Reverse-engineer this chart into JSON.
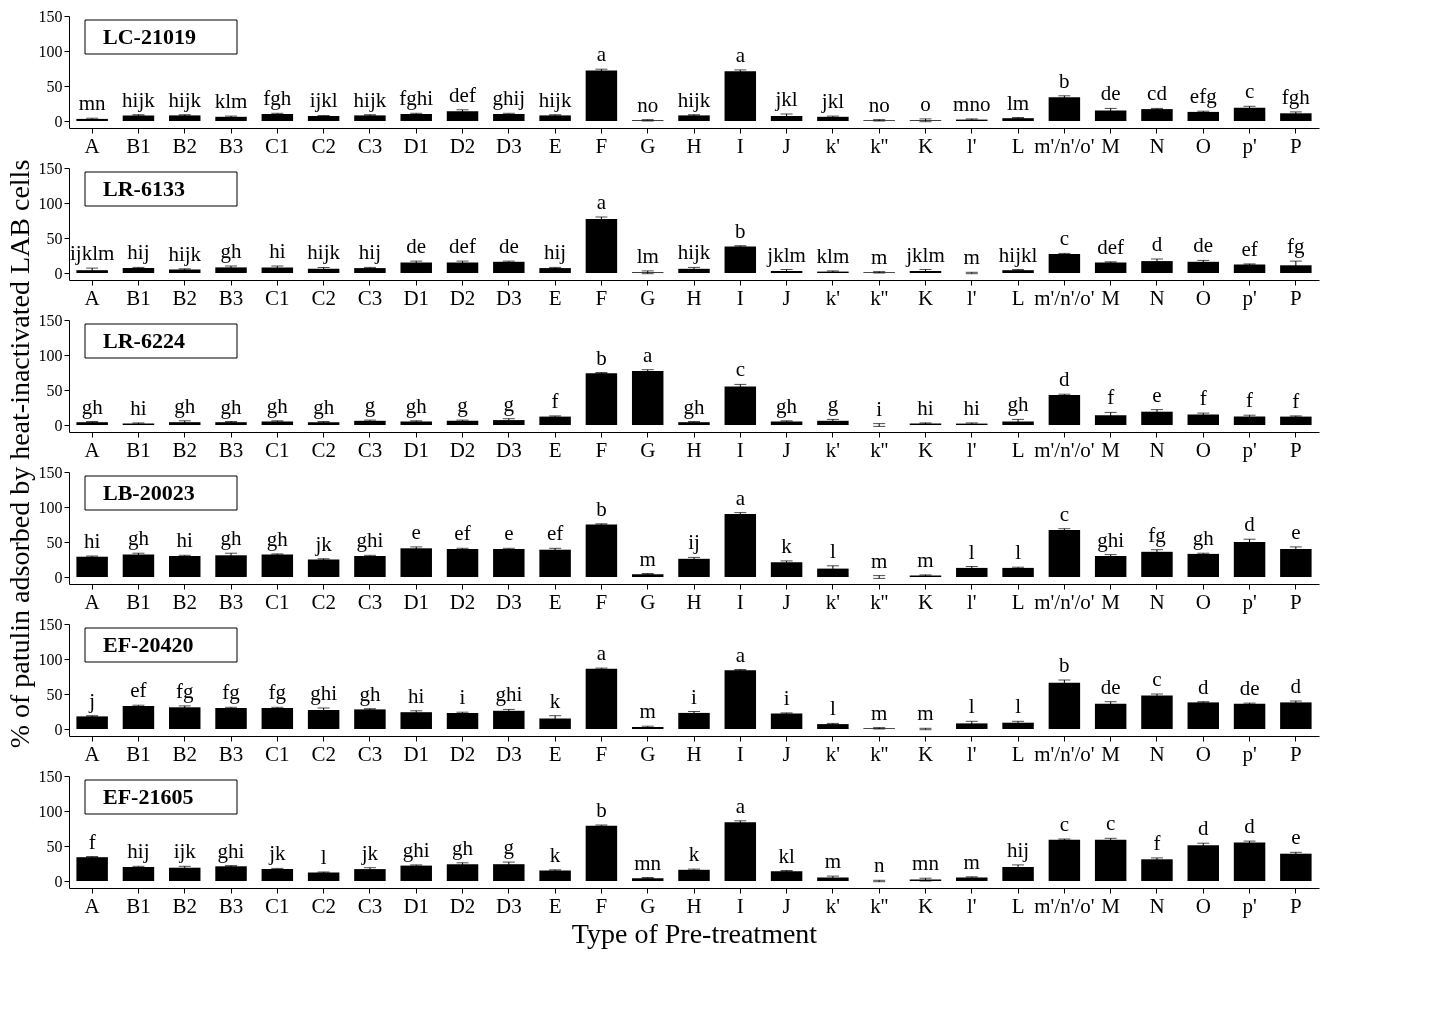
{
  "chart_data": [
    {
      "type": "bar",
      "title": "LC-21019",
      "color": "#000000",
      "ylim": [
        -10,
        150
      ],
      "yticks": [
        0,
        50,
        100,
        150
      ],
      "grid": false,
      "categories": [
        "A",
        "B1",
        "B2",
        "B3",
        "C1",
        "C2",
        "C3",
        "D1",
        "D2",
        "D3",
        "E",
        "F",
        "G",
        "H",
        "I",
        "J",
        "k'",
        "k''",
        "K",
        "l'",
        "L",
        "m'/n'/o'",
        "M",
        "N",
        "O",
        "p'",
        "P"
      ],
      "values": [
        3,
        8,
        8,
        6,
        10,
        7,
        8,
        10,
        14,
        10,
        8,
        72,
        1,
        8,
        71,
        7,
        6,
        1,
        1,
        2,
        4,
        34,
        15,
        17,
        13,
        19,
        11
      ],
      "errors": [
        1,
        1,
        1,
        1,
        1,
        1,
        1,
        1,
        2,
        1,
        1,
        2,
        1,
        1,
        2,
        3,
        1,
        1,
        2,
        1,
        1,
        2,
        3,
        1,
        1,
        2,
        2
      ],
      "value_labels": [
        "mn",
        "hijk",
        "hijk",
        "klm",
        "fgh",
        "ijkl",
        "hijk",
        "fghi",
        "def",
        "ghij",
        "hijk",
        "a",
        "no",
        "hijk",
        "a",
        "jkl",
        "jkl",
        "no",
        "o",
        "mno",
        "lm",
        "b",
        "de",
        "cd",
        "efg",
        "c",
        "fgh"
      ]
    },
    {
      "type": "bar",
      "title": "LR-6133",
      "color": "#000000",
      "ylim": [
        -10,
        150
      ],
      "yticks": [
        0,
        50,
        100,
        150
      ],
      "grid": false,
      "categories": [
        "A",
        "B1",
        "B2",
        "B3",
        "C1",
        "C2",
        "C3",
        "D1",
        "D2",
        "D3",
        "E",
        "F",
        "G",
        "H",
        "I",
        "J",
        "k'",
        "k''",
        "K",
        "l'",
        "L",
        "m'/n'/o'",
        "M",
        "N",
        "O",
        "p'",
        "P"
      ],
      "values": [
        4,
        7,
        5,
        8,
        8,
        6,
        7,
        15,
        15,
        16,
        7,
        77,
        1,
        6,
        38,
        3,
        2,
        1,
        3,
        0,
        4,
        27,
        15,
        17,
        16,
        12,
        11
      ],
      "errors": [
        3,
        1,
        1,
        2,
        2,
        2,
        1,
        2,
        2,
        1,
        1,
        3,
        2,
        2,
        1,
        2,
        1,
        1,
        2,
        1,
        1,
        1,
        1,
        3,
        2,
        1,
        6
      ],
      "value_labels": [
        "ijklm",
        "hij",
        "hijk",
        "gh",
        "hi",
        "hijk",
        "hij",
        "de",
        "def",
        "de",
        "hij",
        "a",
        "lm",
        "hijk",
        "b",
        "jklm",
        "klm",
        "m",
        "jklm",
        "m",
        "hijkl",
        "c",
        "def",
        "d",
        "de",
        "ef",
        "fg"
      ]
    },
    {
      "type": "bar",
      "title": "LR-6224",
      "color": "#000000",
      "ylim": [
        -10,
        150
      ],
      "yticks": [
        0,
        50,
        100,
        150
      ],
      "grid": false,
      "ylabel": "% of patulin adsorbed by heat-inactivated LAB cells",
      "categories": [
        "A",
        "B1",
        "B2",
        "B3",
        "C1",
        "C2",
        "C3",
        "D1",
        "D2",
        "D3",
        "E",
        "F",
        "G",
        "H",
        "I",
        "J",
        "k'",
        "k''",
        "K",
        "l'",
        "L",
        "m'/n'/o'",
        "M",
        "N",
        "O",
        "p'",
        "P"
      ],
      "values": [
        4,
        2,
        4,
        4,
        5,
        4,
        6,
        5,
        6,
        7,
        12,
        74,
        77,
        4,
        55,
        5,
        6,
        0,
        2,
        2,
        5,
        43,
        14,
        19,
        15,
        12,
        12
      ],
      "errors": [
        1,
        1,
        2,
        1,
        1,
        1,
        1,
        1,
        1,
        2,
        1,
        1,
        2,
        1,
        3,
        1,
        2,
        2,
        1,
        1,
        3,
        1,
        4,
        3,
        2,
        2,
        1
      ],
      "value_labels": [
        "gh",
        "hi",
        "gh",
        "gh",
        "gh",
        "gh",
        "g",
        "gh",
        "g",
        "g",
        "f",
        "b",
        "a",
        "gh",
        "c",
        "gh",
        "g",
        "i",
        "hi",
        "hi",
        "gh",
        "d",
        "f",
        "e",
        "f",
        "f",
        "f"
      ]
    },
    {
      "type": "bar",
      "title": "LB-20023",
      "color": "#000000",
      "ylim": [
        -10,
        150
      ],
      "yticks": [
        0,
        50,
        100,
        150
      ],
      "grid": false,
      "categories": [
        "A",
        "B1",
        "B2",
        "B3",
        "C1",
        "C2",
        "C3",
        "D1",
        "D2",
        "D3",
        "E",
        "F",
        "G",
        "H",
        "I",
        "J",
        "k'",
        "k''",
        "K",
        "l'",
        "L",
        "m'/n'/o'",
        "M",
        "N",
        "O",
        "p'",
        "P"
      ],
      "values": [
        29,
        32,
        30,
        31,
        32,
        25,
        30,
        41,
        40,
        40,
        39,
        75,
        4,
        26,
        90,
        21,
        12,
        0,
        2,
        13,
        13,
        67,
        30,
        36,
        33,
        50,
        40
      ],
      "errors": [
        1,
        2,
        1,
        3,
        1,
        1,
        1,
        2,
        1,
        1,
        2,
        1,
        1,
        2,
        2,
        2,
        4,
        2,
        1,
        2,
        1,
        2,
        2,
        3,
        1,
        4,
        3
      ],
      "value_labels": [
        "hi",
        "gh",
        "hi",
        "gh",
        "gh",
        "jk",
        "ghi",
        "e",
        "ef",
        "e",
        "ef",
        "b",
        "m",
        "ij",
        "a",
        "k",
        "l",
        "m",
        "m",
        "l",
        "l",
        "c",
        "ghi",
        "fg",
        "gh",
        "d",
        "e"
      ]
    },
    {
      "type": "bar",
      "title": "EF-20420",
      "color": "#000000",
      "ylim": [
        -10,
        150
      ],
      "yticks": [
        0,
        50,
        100,
        150
      ],
      "grid": false,
      "categories": [
        "A",
        "B1",
        "B2",
        "B3",
        "C1",
        "C2",
        "C3",
        "D1",
        "D2",
        "D3",
        "E",
        "F",
        "G",
        "H",
        "I",
        "J",
        "k'",
        "k''",
        "K",
        "l'",
        "L",
        "m'/n'/o'",
        "M",
        "N",
        "O",
        "p'",
        "P"
      ],
      "values": [
        18,
        33,
        31,
        30,
        30,
        27,
        28,
        24,
        23,
        26,
        15,
        86,
        3,
        23,
        84,
        22,
        7,
        1,
        0,
        8,
        9,
        66,
        36,
        48,
        38,
        36,
        38
      ],
      "errors": [
        1,
        1,
        2,
        1,
        1,
        3,
        1,
        2,
        1,
        2,
        4,
        1,
        1,
        2,
        1,
        1,
        1,
        1,
        1,
        3,
        2,
        4,
        3,
        2,
        1,
        1,
        2
      ],
      "value_labels": [
        "j",
        "ef",
        "fg",
        "fg",
        "fg",
        "ghi",
        "gh",
        "hi",
        "i",
        "ghi",
        "k",
        "a",
        "m",
        "i",
        "a",
        "i",
        "l",
        "m",
        "m",
        "l",
        "l",
        "b",
        "de",
        "c",
        "d",
        "de",
        "d"
      ]
    },
    {
      "type": "bar",
      "title": "EF-21605",
      "color": "#000000",
      "ylim": [
        -10,
        150
      ],
      "yticks": [
        0,
        50,
        100,
        150
      ],
      "grid": false,
      "xlabel": "Type of Pre-treatment",
      "categories": [
        "A",
        "B1",
        "B2",
        "B3",
        "C1",
        "C2",
        "C3",
        "D1",
        "D2",
        "D3",
        "E",
        "F",
        "G",
        "H",
        "I",
        "J",
        "k'",
        "k''",
        "K",
        "l'",
        "L",
        "m'/n'/o'",
        "M",
        "N",
        "O",
        "p'",
        "P"
      ],
      "values": [
        34,
        20,
        19,
        21,
        17,
        12,
        17,
        22,
        24,
        24,
        15,
        79,
        4,
        16,
        84,
        14,
        5,
        0,
        2,
        5,
        20,
        59,
        59,
        31,
        51,
        55,
        39
      ],
      "errors": [
        1,
        1,
        2,
        1,
        1,
        1,
        2,
        1,
        2,
        3,
        1,
        1,
        1,
        1,
        2,
        1,
        2,
        1,
        2,
        1,
        3,
        1,
        2,
        2,
        3,
        2,
        2
      ],
      "value_labels": [
        "f",
        "hij",
        "ijk",
        "ghi",
        "jk",
        "l",
        "jk",
        "ghi",
        "gh",
        "g",
        "k",
        "b",
        "mn",
        "k",
        "a",
        "kl",
        "m",
        "n",
        "mn",
        "m",
        "hij",
        "c",
        "c",
        "f",
        "d",
        "d",
        "e"
      ]
    }
  ]
}
